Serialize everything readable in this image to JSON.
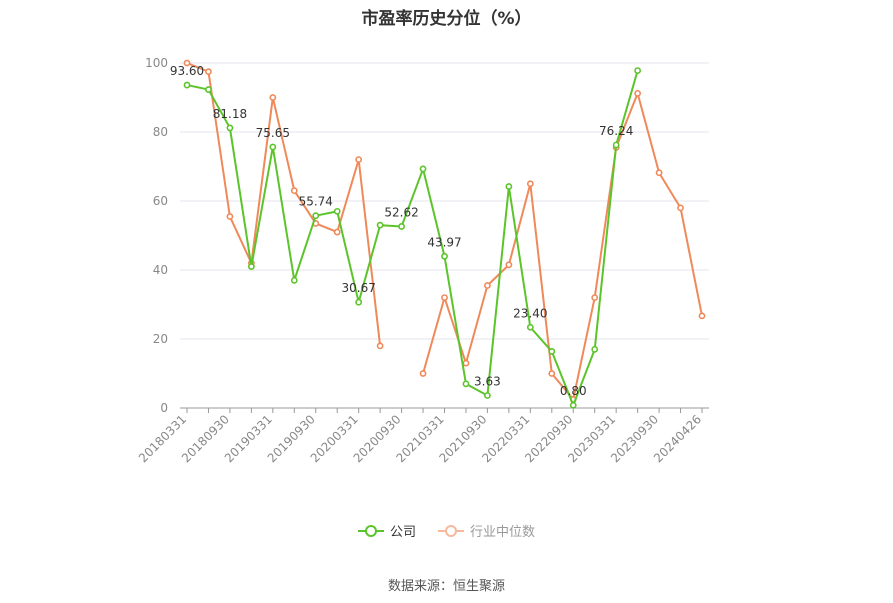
{
  "chart_data": {
    "type": "line",
    "title": "市盈率历史分位（%）",
    "xlabel": "",
    "ylabel": "",
    "ylim": [
      0,
      100
    ],
    "yticks": [
      "0",
      "20",
      "40",
      "60",
      "80",
      "100"
    ],
    "xtick_labels": [
      "20180331",
      "20180930",
      "20190331",
      "20190930",
      "20200331",
      "20200930",
      "20210331",
      "20210930",
      "20220331",
      "20220930",
      "20230331",
      "20230930",
      "20240426"
    ],
    "x": [
      "20180331",
      "20180630",
      "20180930",
      "20181231",
      "20190331",
      "20190630",
      "20190930",
      "20191231",
      "20200331",
      "20200630",
      "20200930",
      "20201231",
      "20210331",
      "20210630",
      "20210930",
      "20211231",
      "20220331",
      "20220630",
      "20220930",
      "20221231",
      "20230331",
      "20230630",
      "20230930",
      "20231231",
      "20240426"
    ],
    "grid": true,
    "legend_position": "bottom",
    "series": [
      {
        "name": "公司",
        "color": "#5cc42b",
        "values": [
          93.6,
          92.3,
          81.18,
          41.0,
          75.65,
          37.0,
          55.74,
          57.0,
          30.67,
          53.0,
          52.62,
          69.3,
          43.97,
          7.0,
          3.63,
          64.2,
          23.4,
          16.4,
          0.8,
          17.0,
          76.24,
          97.8,
          null,
          null,
          null
        ],
        "labels": [
          "93.60",
          null,
          "81.18",
          null,
          "75.65",
          null,
          "55.74",
          null,
          "30.67",
          null,
          "52.62",
          null,
          "43.97",
          null,
          "3.63",
          null,
          "23.40",
          null,
          "0.80",
          null,
          "76.24",
          null,
          null,
          null,
          null
        ]
      },
      {
        "name": "行业中位数",
        "color": "#f0895a",
        "values": [
          100.0,
          97.5,
          55.5,
          42.0,
          90.0,
          63.0,
          53.5,
          51.0,
          72.0,
          18.0,
          null,
          10.0,
          32.0,
          13.0,
          35.5,
          41.5,
          65.0,
          10.0,
          2.5,
          32.0,
          75.5,
          91.2,
          68.2,
          58.0,
          26.7
        ]
      }
    ]
  },
  "source": "数据来源：恒生聚源"
}
